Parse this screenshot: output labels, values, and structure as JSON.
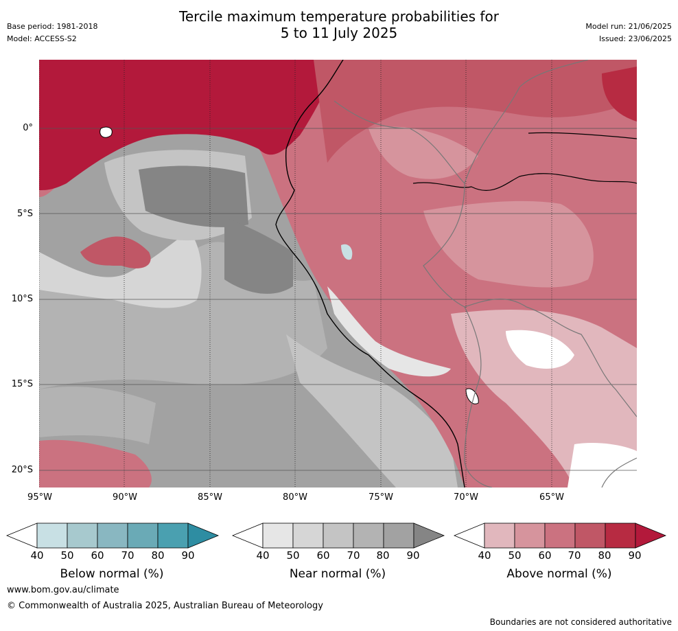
{
  "title_line1": "Tercile maximum temperature probabilities for",
  "title_line2": "5 to 11 July 2025",
  "meta_left": {
    "base_period": "Base period: 1981-2018",
    "model": "Model: ACCESS-S2"
  },
  "meta_right": {
    "model_run": "Model run: 21/06/2025",
    "issued": "Issued: 23/06/2025"
  },
  "map": {
    "lat_labels": [
      "0°",
      "5°S",
      "10°S",
      "15°S",
      "20°S"
    ],
    "lon_labels": [
      "95°W",
      "90°W",
      "85°W",
      "80°W",
      "75°W",
      "70°W",
      "65°W"
    ]
  },
  "colorbars": [
    {
      "title": "Below normal (%)",
      "ticks": [
        "40",
        "50",
        "60",
        "70",
        "80",
        "90"
      ],
      "colors": [
        "#ffffff",
        "#c8e0e4",
        "#a7c9ce",
        "#89b7c1",
        "#6aaab6",
        "#4aa0b0",
        "#2e8da2"
      ]
    },
    {
      "title": "Near normal (%)",
      "ticks": [
        "40",
        "50",
        "60",
        "70",
        "80",
        "90"
      ],
      "colors": [
        "#ffffff",
        "#e6e6e6",
        "#d6d6d6",
        "#c4c4c4",
        "#b3b3b3",
        "#a2a2a2",
        "#858585"
      ]
    },
    {
      "title": "Above normal (%)",
      "ticks": [
        "40",
        "50",
        "60",
        "70",
        "80",
        "90"
      ],
      "colors": [
        "#ffffff",
        "#e1b7bd",
        "#d6949d",
        "#cb7280",
        "#c05766",
        "#b72b42",
        "#b3193b"
      ]
    }
  ],
  "footer": {
    "url": "www.bom.gov.au/climate",
    "copyright": "© Commonwealth of Australia 2025, Australian Bureau of Meteorology",
    "note": "Boundaries are not considered authoritative"
  }
}
